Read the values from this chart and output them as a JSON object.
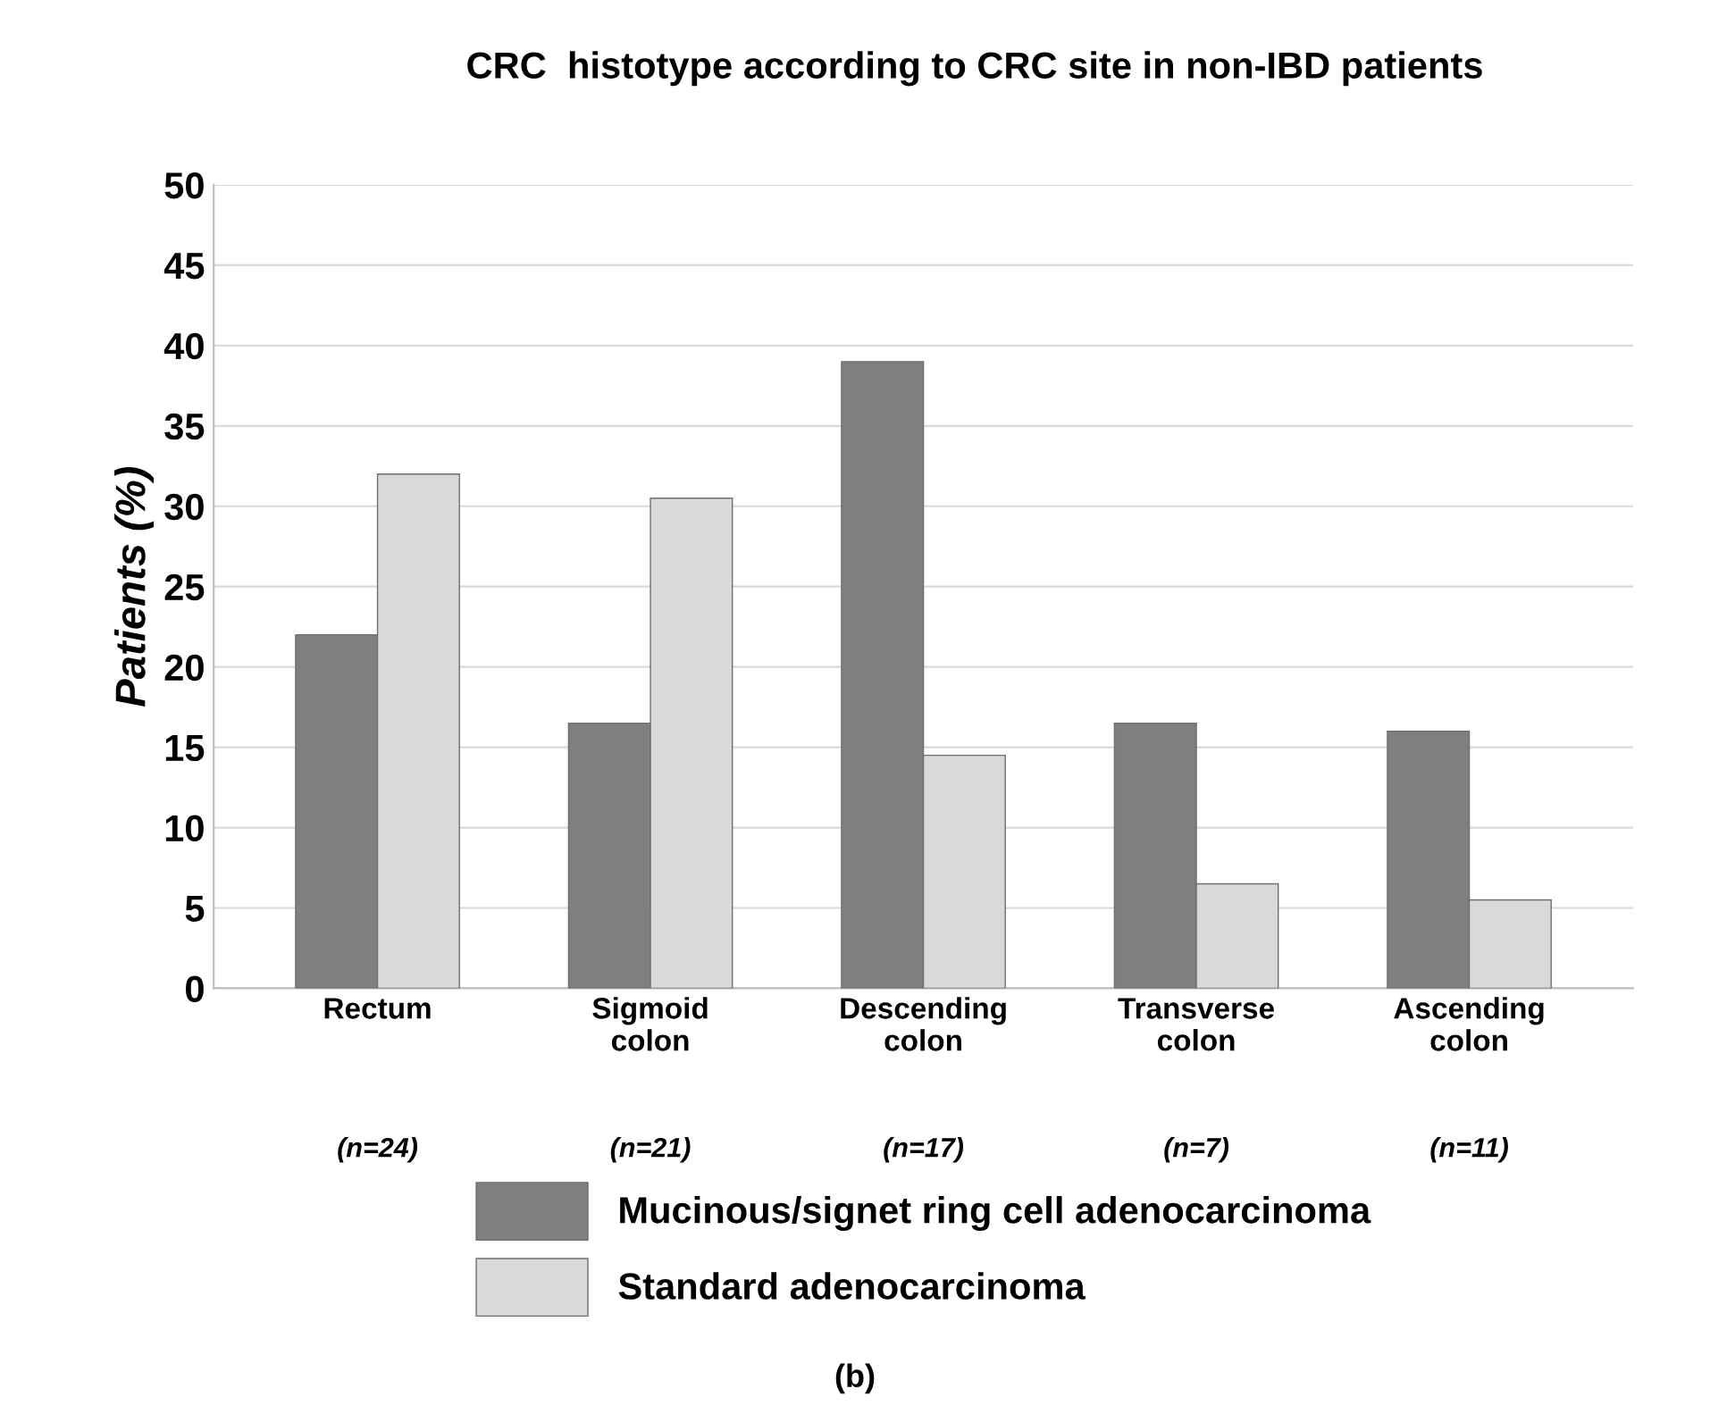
{
  "chart_data": {
    "type": "bar",
    "title": "CRC  histotype according to CRC site in non-IBD patients",
    "ylabel": "Patients (%)",
    "categories": [
      "Rectum",
      "Sigmoid\ncolon",
      "Descending\ncolon",
      "Transverse\ncolon",
      "Ascending\ncolon"
    ],
    "series": [
      {
        "name": "Mucinous/signet ring cell adenocarcinoma",
        "color": "#7f7f7f",
        "values": [
          22,
          16.5,
          39,
          16.5,
          16
        ]
      },
      {
        "name": "Standard adenocarcinoma",
        "color": "#d9d9d9",
        "values": [
          32,
          30.5,
          14.5,
          6.5,
          5.5
        ]
      }
    ],
    "annotations": [
      "(n=24)",
      "(n=21)",
      "(n=17)",
      "(n=7)",
      "(n=11)",
      "(b)"
    ],
    "ylim": [
      0,
      50
    ],
    "yticks": [
      0,
      5,
      10,
      15,
      20,
      25,
      30,
      35,
      40,
      45,
      50
    ],
    "grid": "y",
    "legend": "bottom"
  }
}
